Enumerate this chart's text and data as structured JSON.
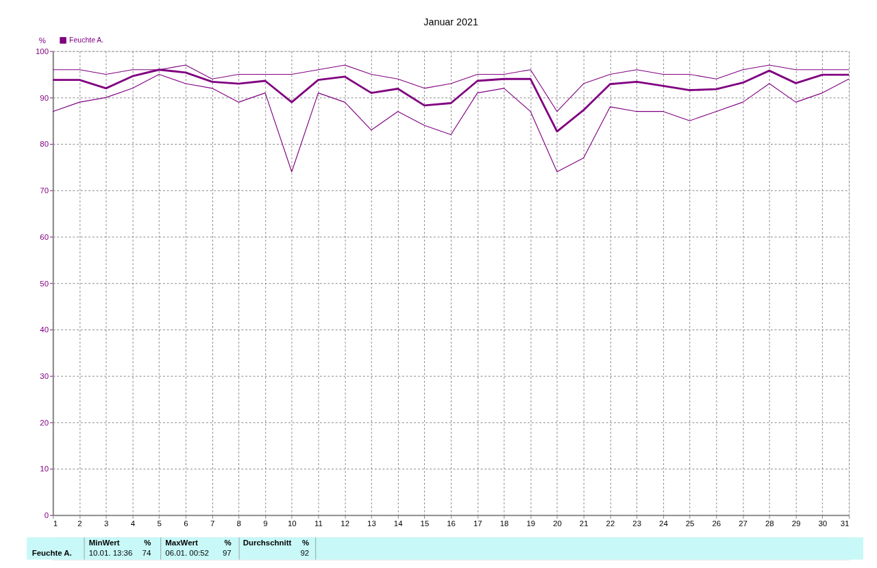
{
  "chart_data": {
    "type": "line",
    "title": "Januar 2021",
    "ylabel": "%",
    "x": [
      1,
      2,
      3,
      4,
      5,
      6,
      7,
      8,
      9,
      10,
      11,
      12,
      13,
      14,
      15,
      16,
      17,
      18,
      19,
      20,
      21,
      22,
      23,
      24,
      25,
      26,
      27,
      28,
      29,
      30,
      31
    ],
    "series": [
      {
        "name": "Feuchte A.",
        "color": "#800080",
        "values": [
          93.8,
          93.8,
          92,
          94.6,
          96,
          95.4,
          93.4,
          93,
          93.6,
          89,
          93.8,
          94.5,
          91,
          91.9,
          88.3,
          88.8,
          93.6,
          94,
          94,
          82.7,
          87.3,
          92.9,
          93.4,
          92.5,
          91.6,
          91.8,
          93.2,
          95.8,
          93.1,
          94.9,
          94.9
        ]
      },
      {
        "color": "#800080",
        "values": [
          96,
          96,
          95,
          96,
          96,
          97,
          94,
          95,
          95,
          95,
          96,
          97,
          95,
          94,
          92,
          93,
          95,
          95,
          96,
          87,
          93,
          95,
          96,
          95,
          95,
          94,
          96,
          97,
          96,
          96,
          96
        ]
      },
      {
        "color": "#800080",
        "values": [
          87,
          89,
          90,
          92,
          95,
          93,
          92,
          89,
          91,
          74,
          91,
          89,
          83,
          87,
          84,
          82,
          91,
          92,
          87,
          74,
          77,
          88,
          87,
          87,
          85,
          87,
          89,
          93,
          89,
          91,
          94
        ]
      }
    ],
    "xlim": [
      1,
      31
    ],
    "xticks": [
      1,
      2,
      3,
      4,
      5,
      6,
      7,
      8,
      9,
      10,
      11,
      12,
      13,
      14,
      15,
      16,
      17,
      18,
      19,
      20,
      21,
      22,
      23,
      24,
      25,
      26,
      27,
      28,
      29,
      30,
      31
    ],
    "ylim": [
      0,
      100
    ],
    "yticks": [
      0,
      10,
      20,
      30,
      40,
      50,
      60,
      70,
      80,
      90,
      100
    ],
    "grid": true,
    "legend": "top left",
    "marker": "none",
    "line_style": "solid",
    "annotations": [
      "Feuchte A.",
      "MinWert",
      "%",
      "10.01.  13:36",
      "74",
      "MaxWert",
      "%",
      "06.01.  00:52",
      "97",
      "Durchschnitt",
      "%",
      "92"
    ]
  }
}
